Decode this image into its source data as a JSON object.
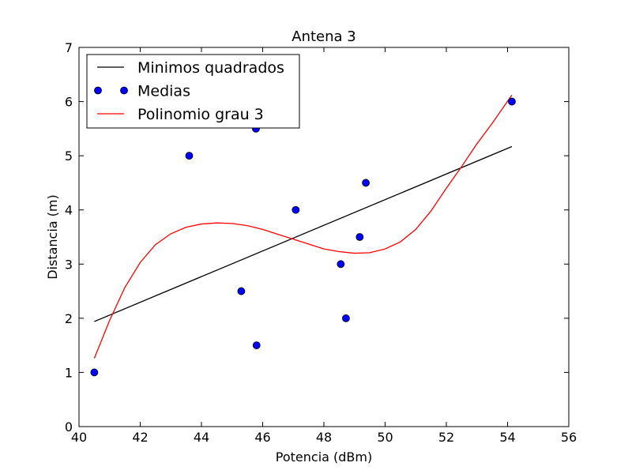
{
  "chart_data": {
    "type": "scatter",
    "title": "Antena 3",
    "xlabel": "Potencia (dBm)",
    "ylabel": "Distancia (m)",
    "xlim": [
      40,
      56
    ],
    "ylim": [
      0,
      7
    ],
    "xticks": [
      40,
      42,
      44,
      46,
      48,
      50,
      52,
      54,
      56
    ],
    "yticks": [
      0,
      1,
      2,
      3,
      4,
      5,
      6,
      7
    ],
    "grid": false,
    "legend_position": "top-left",
    "series": [
      {
        "name": "Minimos quadrados",
        "kind": "line",
        "color": "#000000",
        "x": [
          40.5,
          54.14
        ],
        "y": [
          1.94,
          5.17
        ]
      },
      {
        "name": "Medias",
        "kind": "markers",
        "color": "#0000ff",
        "x": [
          40.5,
          43.6,
          45.3,
          45.78,
          45.8,
          47.08,
          48.55,
          48.72,
          49.17,
          49.37,
          54.14
        ],
        "y": [
          1.0,
          5.0,
          2.5,
          5.5,
          1.5,
          4.0,
          3.0,
          2.0,
          3.5,
          4.5,
          6.0
        ]
      },
      {
        "name": "Polinomio grau 3",
        "kind": "line",
        "color": "#ff0000",
        "x": [
          40.5,
          41.0,
          41.5,
          42.0,
          42.5,
          43.0,
          43.5,
          44.0,
          44.5,
          45.0,
          45.5,
          46.0,
          46.5,
          47.0,
          47.5,
          48.0,
          48.5,
          49.0,
          49.5,
          50.0,
          50.5,
          51.0,
          51.5,
          52.0,
          52.5,
          53.0,
          53.5,
          54.14
        ],
        "y": [
          1.26,
          1.96,
          2.57,
          3.03,
          3.36,
          3.56,
          3.68,
          3.74,
          3.76,
          3.75,
          3.71,
          3.64,
          3.55,
          3.46,
          3.37,
          3.28,
          3.23,
          3.2,
          3.21,
          3.28,
          3.41,
          3.64,
          3.98,
          4.4,
          4.8,
          5.22,
          5.6,
          6.12
        ]
      }
    ]
  }
}
